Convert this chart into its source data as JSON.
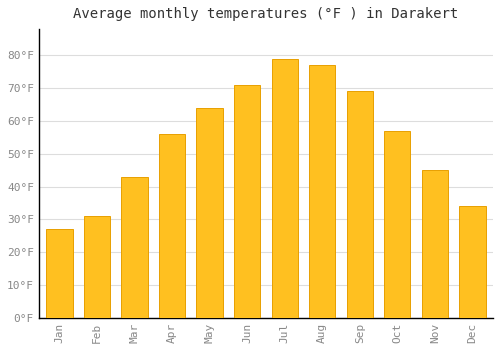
{
  "title": "Average monthly temperatures (°F ) in Darakert",
  "months": [
    "Jan",
    "Feb",
    "Mar",
    "Apr",
    "May",
    "Jun",
    "Jul",
    "Aug",
    "Sep",
    "Oct",
    "Nov",
    "Dec"
  ],
  "values": [
    27,
    31,
    43,
    56,
    64,
    71,
    79,
    77,
    69,
    57,
    45,
    34
  ],
  "bar_color": "#FFC020",
  "bar_edge_color": "#E8A000",
  "background_color": "#FFFFFF",
  "plot_bg_color": "#FFFFFF",
  "grid_color": "#DDDDDD",
  "text_color": "#888888",
  "title_color": "#333333",
  "axis_color": "#000000",
  "ylim": [
    0,
    88
  ],
  "yticks": [
    0,
    10,
    20,
    30,
    40,
    50,
    60,
    70,
    80
  ],
  "ytick_labels": [
    "0°F",
    "10°F",
    "20°F",
    "30°F",
    "40°F",
    "50°F",
    "60°F",
    "70°F",
    "80°F"
  ],
  "title_fontsize": 10,
  "tick_fontsize": 8,
  "font_family": "monospace"
}
